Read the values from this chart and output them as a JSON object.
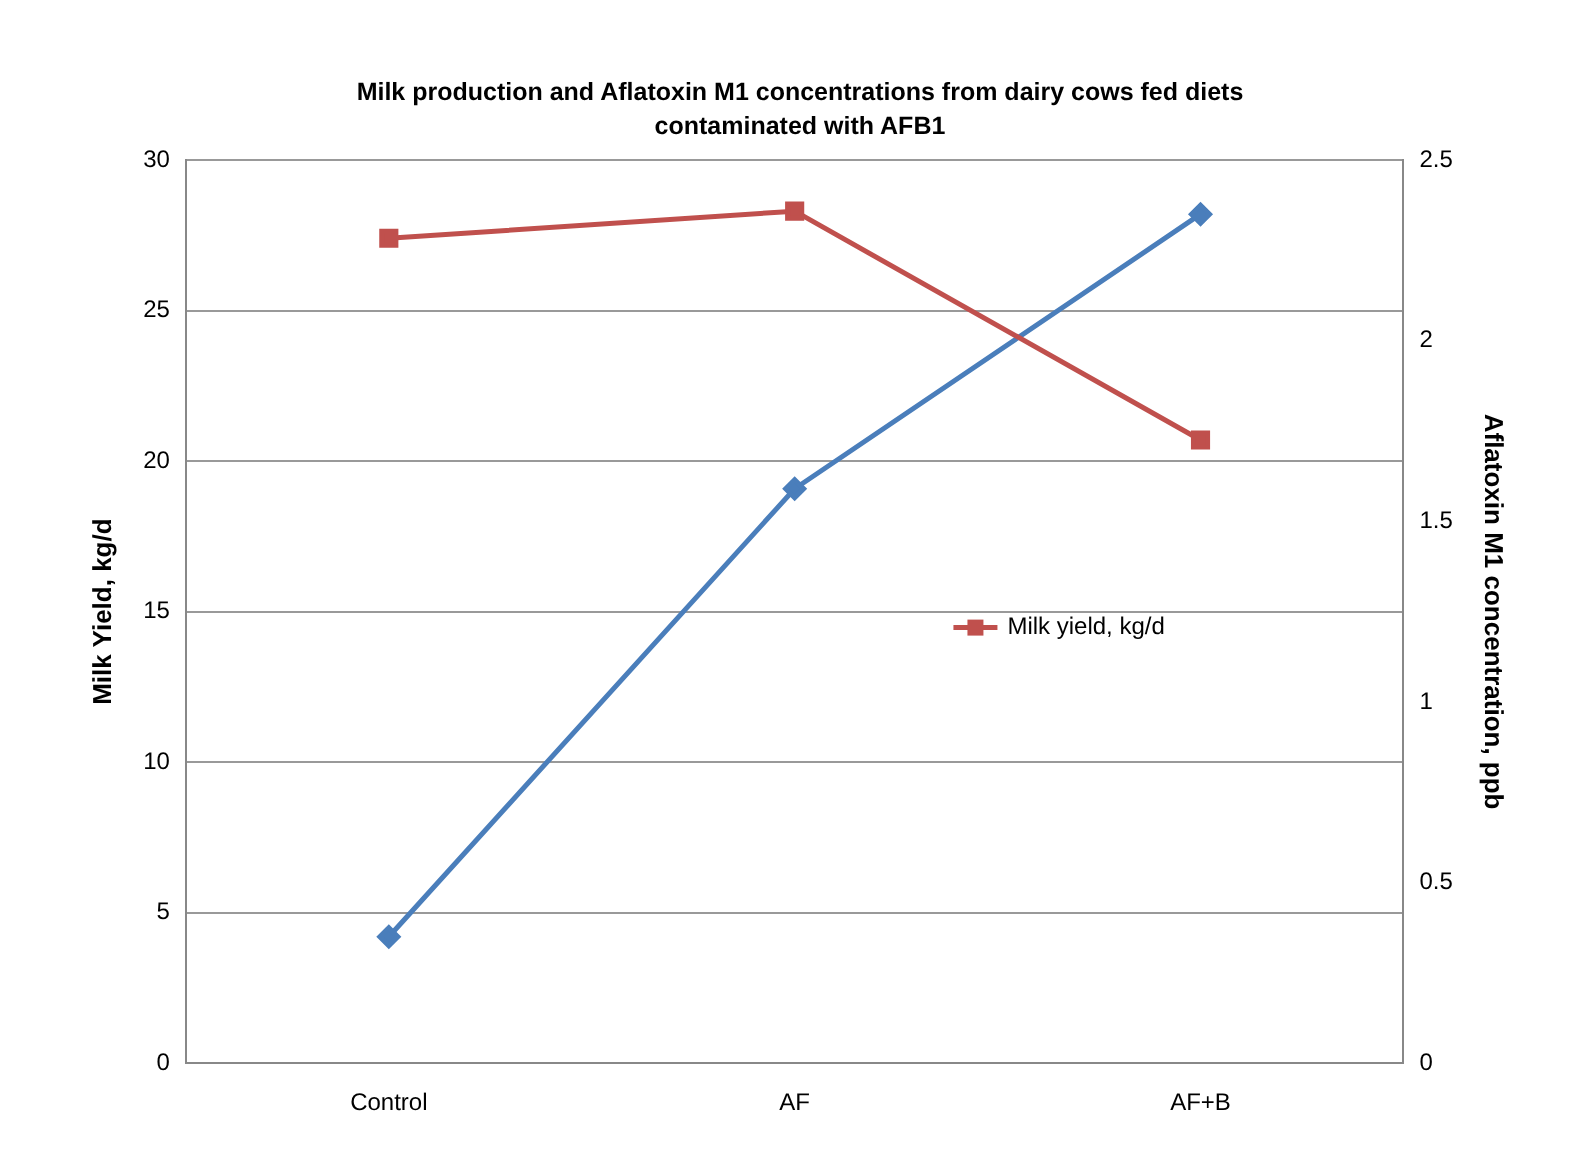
{
  "chart_data": {
    "type": "line",
    "title": "Milk production and Aflatoxin M1 concentrations from dairy cows fed diets contaminated with AFB1",
    "ylabel": "Milk Yield, kg/d",
    "y2label": "Aflatoxin M1 concentration, ppb",
    "categories": [
      "Control",
      "AF",
      "AF+B"
    ],
    "series": [
      {
        "name": "Milk yield, kg/d",
        "color": "#c0504d",
        "values": [
          27.4,
          28.3,
          20.7
        ],
        "marker": "square"
      },
      {
        "color": "#4a7ebb",
        "values": [
          0.35,
          1.59,
          2.35
        ],
        "axis": "y2",
        "marker": "diamond"
      }
    ],
    "ylim": [
      0,
      30
    ],
    "yticks": [
      0,
      5,
      10,
      15,
      20,
      25,
      30
    ],
    "y2lim": [
      0,
      2.5
    ],
    "y2ticks": [
      0,
      0.5,
      1,
      1.5,
      2,
      2.5
    ],
    "grid": "y",
    "legend": "right"
  }
}
